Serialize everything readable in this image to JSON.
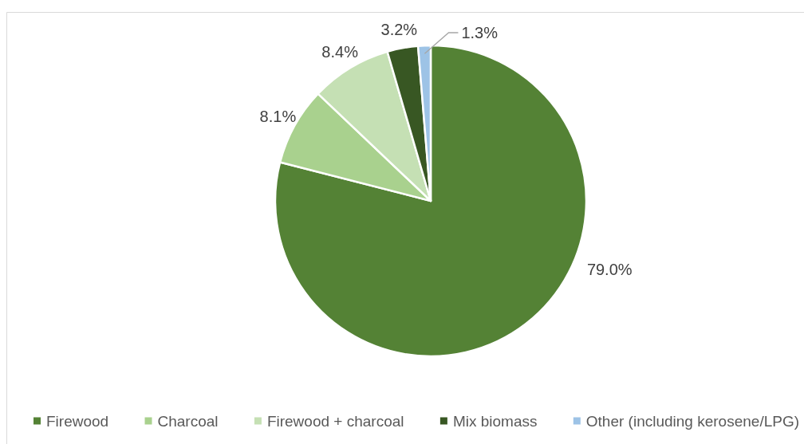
{
  "chart_data": {
    "type": "pie",
    "categories": [
      "Firewood",
      "Charcoal",
      "Firewood + charcoal",
      "Mix biomass",
      "Other (including kerosene/LPG)"
    ],
    "values": [
      79.0,
      8.1,
      8.4,
      3.2,
      1.3
    ],
    "colors": [
      "#548235",
      "#a9d18e",
      "#c5e0b4",
      "#385723",
      "#9dc3e6"
    ],
    "value_labels": [
      "79.0%",
      "8.1%",
      "8.4%",
      "3.2%",
      "1.3%"
    ],
    "legend": "bottom"
  }
}
